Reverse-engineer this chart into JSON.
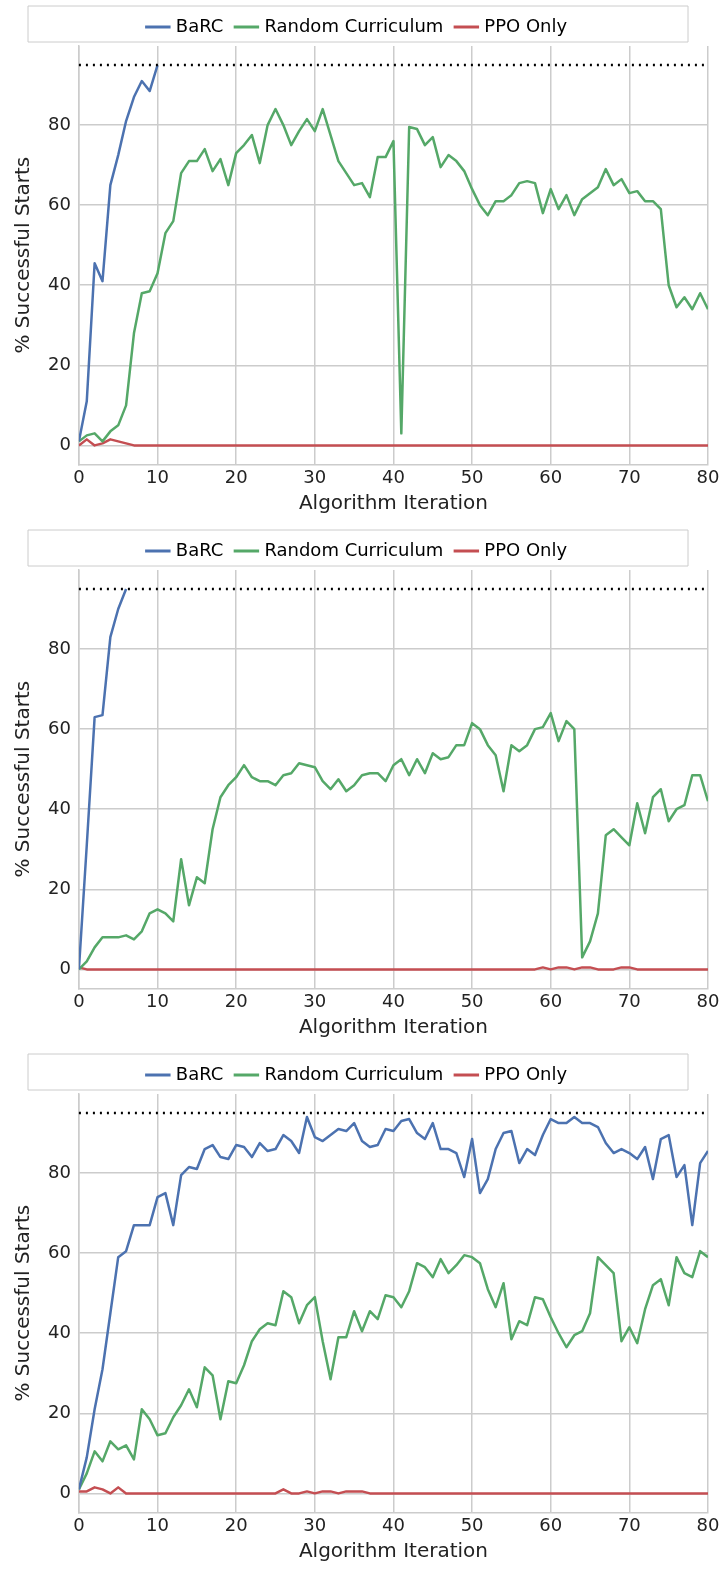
{
  "chart_data": [
    {
      "type": "line",
      "xlabel": "Algorithm Iteration",
      "ylabel": "% Successful Starts",
      "xlim": [
        0,
        80
      ],
      "ylim": [
        -4.75,
        99.75
      ],
      "xticks": [
        0,
        10,
        20,
        30,
        40,
        50,
        60,
        70,
        80
      ],
      "yticks": [
        0,
        20,
        40,
        60,
        80
      ],
      "grid": true,
      "legend": "top",
      "marker": "none",
      "ref_lines": [
        {
          "axis": "y",
          "value": 95,
          "color": "#000000",
          "line_style": "dotted"
        }
      ],
      "x": [
        0,
        1,
        2,
        3,
        4,
        5,
        6,
        7,
        8,
        9,
        10,
        11,
        12,
        13,
        14,
        15,
        16,
        17,
        18,
        19,
        20,
        21,
        22,
        23,
        24,
        25,
        26,
        27,
        28,
        29,
        30,
        31,
        32,
        33,
        34,
        35,
        36,
        37,
        38,
        39,
        40,
        41,
        42,
        43,
        44,
        45,
        46,
        47,
        48,
        49,
        50,
        51,
        52,
        53,
        54,
        55,
        56,
        57,
        58,
        59,
        60,
        61,
        62,
        63,
        64,
        65,
        66,
        67,
        68,
        69,
        70,
        71,
        72,
        73,
        74,
        75,
        76,
        77,
        78,
        79,
        80
      ],
      "series": [
        {
          "name": "BaRC",
          "color": "#4c72b0",
          "x": [
            0,
            1,
            2,
            3,
            4,
            5,
            6,
            7,
            8,
            9,
            10
          ],
          "values": [
            1,
            11,
            45.5,
            41,
            65,
            72.5,
            81,
            87,
            91,
            88.5,
            95
          ]
        },
        {
          "name": "Random Curriculum",
          "color": "#55a868",
          "values": [
            1,
            2.5,
            3,
            1,
            3.5,
            5,
            10,
            28,
            38,
            38.5,
            43,
            53,
            56,
            68,
            71,
            71,
            74,
            68.5,
            71.5,
            65,
            73,
            75,
            77.5,
            70.5,
            80,
            84,
            80,
            75,
            78.5,
            81.5,
            78.5,
            84,
            77.5,
            71,
            68,
            65,
            65.5,
            62,
            72,
            72,
            76,
            3,
            79.5,
            79,
            75,
            77,
            69.5,
            72.5,
            71,
            68.5,
            64,
            60,
            57.5,
            61,
            61,
            62.5,
            65.5,
            66,
            65.5,
            58,
            64,
            59,
            62.5,
            57.5,
            61.5,
            63,
            64.5,
            69,
            65,
            66.5,
            63,
            63.5,
            61,
            61,
            59,
            40,
            34.5,
            37,
            34,
            38,
            34
          ]
        },
        {
          "name": "PPO Only",
          "color": "#c44e52",
          "values": [
            0,
            1.5,
            0,
            0.5,
            1.5,
            1,
            0.5,
            0,
            0,
            0,
            0,
            0,
            0,
            0,
            0,
            0,
            0,
            0,
            0,
            0,
            0,
            0,
            0,
            0,
            0,
            0,
            0,
            0,
            0,
            0,
            0,
            0,
            0,
            0,
            0,
            0,
            0,
            0,
            0,
            0,
            0,
            0,
            0,
            0,
            0,
            0,
            0,
            0,
            0,
            0,
            0,
            0,
            0,
            0,
            0,
            0,
            0,
            0,
            0,
            0,
            0,
            0,
            0,
            0,
            0,
            0,
            0,
            0,
            0,
            0,
            0,
            0,
            0,
            0,
            0,
            0,
            0,
            0,
            0,
            0,
            0
          ]
        }
      ]
    },
    {
      "type": "line",
      "xlabel": "Algorithm Iteration",
      "ylabel": "% Successful Starts",
      "xlim": [
        0,
        80
      ],
      "ylim": [
        -4.75,
        99.75
      ],
      "xticks": [
        0,
        10,
        20,
        30,
        40,
        50,
        60,
        70,
        80
      ],
      "yticks": [
        0,
        20,
        40,
        60,
        80
      ],
      "grid": true,
      "legend": "top",
      "marker": "none",
      "ref_lines": [
        {
          "axis": "y",
          "value": 95,
          "color": "#000000",
          "line_style": "dotted"
        }
      ],
      "x": [
        0,
        1,
        2,
        3,
        4,
        5,
        6,
        7,
        8,
        9,
        10,
        11,
        12,
        13,
        14,
        15,
        16,
        17,
        18,
        19,
        20,
        21,
        22,
        23,
        24,
        25,
        26,
        27,
        28,
        29,
        30,
        31,
        32,
        33,
        34,
        35,
        36,
        37,
        38,
        39,
        40,
        41,
        42,
        43,
        44,
        45,
        46,
        47,
        48,
        49,
        50,
        51,
        52,
        53,
        54,
        55,
        56,
        57,
        58,
        59,
        60,
        61,
        62,
        63,
        64,
        65,
        66,
        67,
        68,
        69,
        70,
        71,
        72,
        73,
        74,
        75,
        76,
        77,
        78,
        79,
        80
      ],
      "series": [
        {
          "name": "BaRC",
          "color": "#4c72b0",
          "x": [
            0,
            1,
            2,
            3,
            4,
            5,
            6
          ],
          "values": [
            0,
            31,
            63,
            63.5,
            83,
            90,
            95
          ]
        },
        {
          "name": "Random Curriculum",
          "color": "#55a868",
          "values": [
            0,
            2,
            5.5,
            8,
            8,
            8,
            8.5,
            7.5,
            9.5,
            14,
            15,
            14,
            12,
            27.5,
            16,
            23,
            21.5,
            35,
            43,
            46,
            48,
            51,
            48,
            47,
            47,
            46,
            48.5,
            49,
            51.5,
            51,
            50.5,
            47,
            45,
            47.5,
            44.5,
            46,
            48.5,
            49,
            49,
            47,
            51,
            52.5,
            48.5,
            52.5,
            49,
            54,
            52.5,
            53,
            56,
            56,
            61.5,
            60,
            56,
            53.5,
            44.5,
            56,
            54.5,
            56,
            60,
            60.5,
            64,
            57,
            62,
            60,
            3,
            7,
            14,
            33.5,
            35,
            33,
            31,
            41.5,
            34,
            43,
            45,
            37,
            40,
            41,
            48.5,
            48.5,
            42
          ]
        },
        {
          "name": "PPO Only",
          "color": "#c44e52",
          "values": [
            0.5,
            0,
            0,
            0,
            0,
            0,
            0,
            0,
            0,
            0,
            0,
            0,
            0,
            0,
            0,
            0,
            0,
            0,
            0,
            0,
            0,
            0,
            0,
            0,
            0,
            0,
            0,
            0,
            0,
            0,
            0,
            0,
            0,
            0,
            0,
            0,
            0,
            0,
            0,
            0,
            0,
            0,
            0,
            0,
            0,
            0,
            0,
            0,
            0,
            0,
            0,
            0,
            0,
            0,
            0,
            0,
            0,
            0,
            0,
            0.5,
            0,
            0.5,
            0.5,
            0,
            0.5,
            0.5,
            0,
            0,
            0,
            0.5,
            0.5,
            0,
            0,
            0,
            0,
            0,
            0,
            0,
            0,
            0,
            0
          ]
        }
      ]
    },
    {
      "type": "line",
      "xlabel": "Algorithm Iteration",
      "ylabel": "% Successful Starts",
      "xlim": [
        0,
        80
      ],
      "ylim": [
        -4.75,
        99.75
      ],
      "xticks": [
        0,
        10,
        20,
        30,
        40,
        50,
        60,
        70,
        80
      ],
      "yticks": [
        0,
        20,
        40,
        60,
        80
      ],
      "grid": true,
      "legend": "top",
      "marker": "none",
      "ref_lines": [
        {
          "axis": "y",
          "value": 95,
          "color": "#000000",
          "line_style": "dotted"
        }
      ],
      "x": [
        0,
        1,
        2,
        3,
        4,
        5,
        6,
        7,
        8,
        9,
        10,
        11,
        12,
        13,
        14,
        15,
        16,
        17,
        18,
        19,
        20,
        21,
        22,
        23,
        24,
        25,
        26,
        27,
        28,
        29,
        30,
        31,
        32,
        33,
        34,
        35,
        36,
        37,
        38,
        39,
        40,
        41,
        42,
        43,
        44,
        45,
        46,
        47,
        48,
        49,
        50,
        51,
        52,
        53,
        54,
        55,
        56,
        57,
        58,
        59,
        60,
        61,
        62,
        63,
        64,
        65,
        66,
        67,
        68,
        69,
        70,
        71,
        72,
        73,
        74,
        75,
        76,
        77,
        78,
        79,
        80
      ],
      "series": [
        {
          "name": "BaRC",
          "color": "#4c72b0",
          "values": [
            1,
            9,
            21,
            31,
            45,
            59,
            60.5,
            67,
            67,
            67,
            74,
            75,
            67,
            79.5,
            81.5,
            81,
            86,
            87,
            84,
            83.5,
            87,
            86.5,
            84,
            87.5,
            85.5,
            86,
            89.5,
            88,
            85,
            94,
            89,
            88,
            89.5,
            91,
            90.5,
            92.5,
            88,
            86.5,
            87,
            91,
            90.5,
            93,
            93.5,
            90,
            88.5,
            92.5,
            86,
            86,
            85,
            79,
            88.5,
            75,
            78.5,
            86,
            90,
            90.5,
            82.5,
            86,
            84.5,
            89.5,
            93.5,
            92.5,
            92.5,
            94,
            92.5,
            92.5,
            91.5,
            87.5,
            85,
            86,
            85,
            83.5,
            86.5,
            78.5,
            88.5,
            89.5,
            79,
            82,
            67,
            82.5,
            85.5
          ]
        },
        {
          "name": "Random Curriculum",
          "color": "#55a868",
          "values": [
            1,
            5,
            10.5,
            8,
            13,
            11,
            12,
            8.5,
            21,
            18.5,
            14.5,
            15,
            19,
            22,
            26,
            21.5,
            31.5,
            29.5,
            18.5,
            28,
            27.5,
            32,
            38,
            41,
            42.5,
            42,
            50.5,
            49,
            42.5,
            47,
            49,
            38,
            28.5,
            39,
            39,
            45.5,
            40.5,
            45.5,
            43.5,
            49.5,
            49,
            46.5,
            50.5,
            57.5,
            56.5,
            54,
            58.5,
            55,
            57,
            59.5,
            59,
            57.5,
            51,
            46.5,
            52.5,
            38.5,
            43,
            42,
            49,
            48.5,
            44,
            40,
            36.5,
            39.5,
            40.5,
            45,
            59,
            57,
            55,
            38,
            41.5,
            37.5,
            46,
            52,
            53.5,
            47,
            59,
            55,
            54,
            60.5,
            59
          ]
        },
        {
          "name": "PPO Only",
          "color": "#c44e52",
          "values": [
            0.5,
            0.5,
            1.5,
            1,
            0,
            1.5,
            0,
            0,
            0,
            0,
            0,
            0,
            0,
            0,
            0,
            0,
            0,
            0,
            0,
            0,
            0,
            0,
            0,
            0,
            0,
            0,
            1,
            0,
            0,
            0.5,
            0,
            0.5,
            0.5,
            0,
            0.5,
            0.5,
            0.5,
            0,
            0,
            0,
            0,
            0,
            0,
            0,
            0,
            0,
            0,
            0,
            0,
            0,
            0,
            0,
            0,
            0,
            0,
            0,
            0,
            0,
            0,
            0,
            0,
            0,
            0,
            0,
            0,
            0,
            0,
            0,
            0,
            0,
            0,
            0,
            0,
            0,
            0,
            0,
            0,
            0,
            0,
            0,
            0
          ]
        }
      ]
    }
  ]
}
